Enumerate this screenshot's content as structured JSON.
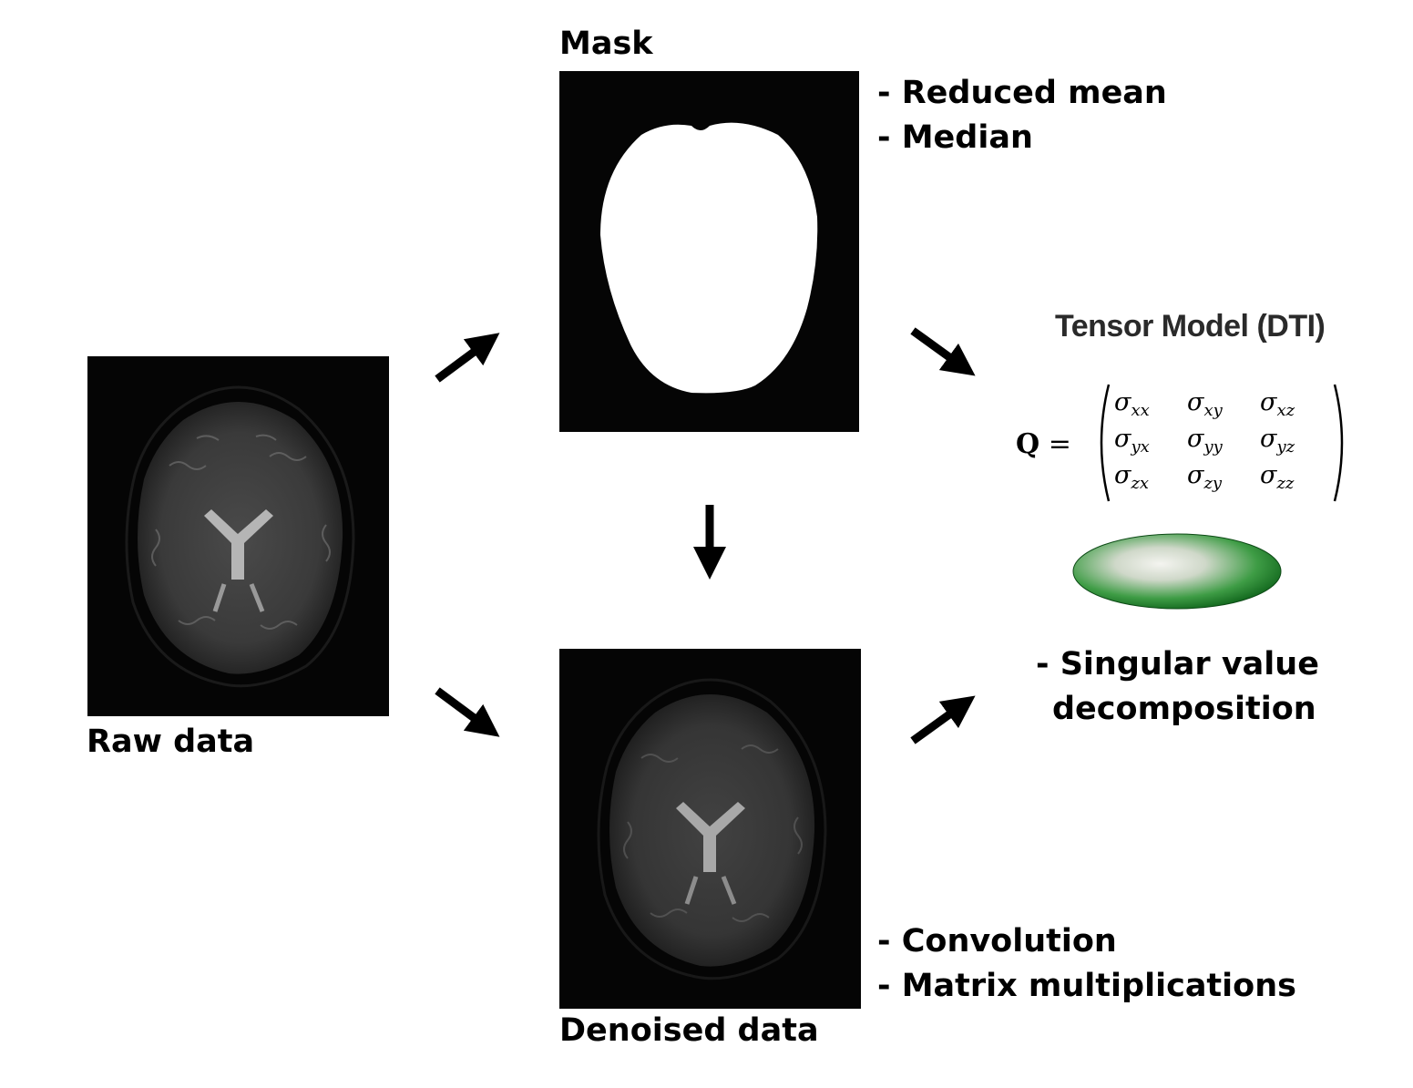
{
  "labels": {
    "mask": "Mask",
    "raw": "Raw data",
    "denoised": "Denoised data"
  },
  "mask_methods": [
    "- Reduced mean",
    "- Median"
  ],
  "denoise_methods": [
    "- Convolution",
    "- Matrix multiplications"
  ],
  "tensor": {
    "title": "Tensor Model (DTI)",
    "lhs": "Q",
    "equals": "=",
    "matrix": [
      [
        {
          "b": "σ",
          "s": "xx"
        },
        {
          "b": "σ",
          "s": "xy"
        },
        {
          "b": "σ",
          "s": "xz"
        }
      ],
      [
        {
          "b": "σ",
          "s": "yx"
        },
        {
          "b": "σ",
          "s": "yy"
        },
        {
          "b": "σ",
          "s": "yz"
        }
      ],
      [
        {
          "b": "σ",
          "s": "zx"
        },
        {
          "b": "σ",
          "s": "zy"
        },
        {
          "b": "σ",
          "s": "zz"
        }
      ]
    ],
    "ellipsoid_color": "#1f8a2a"
  },
  "svd": {
    "line1": "- Singular value",
    "line2": "decomposition"
  },
  "colors": {
    "panel_bg": "#050505",
    "arrow": "#000000",
    "mask_fill": "#ffffff"
  }
}
